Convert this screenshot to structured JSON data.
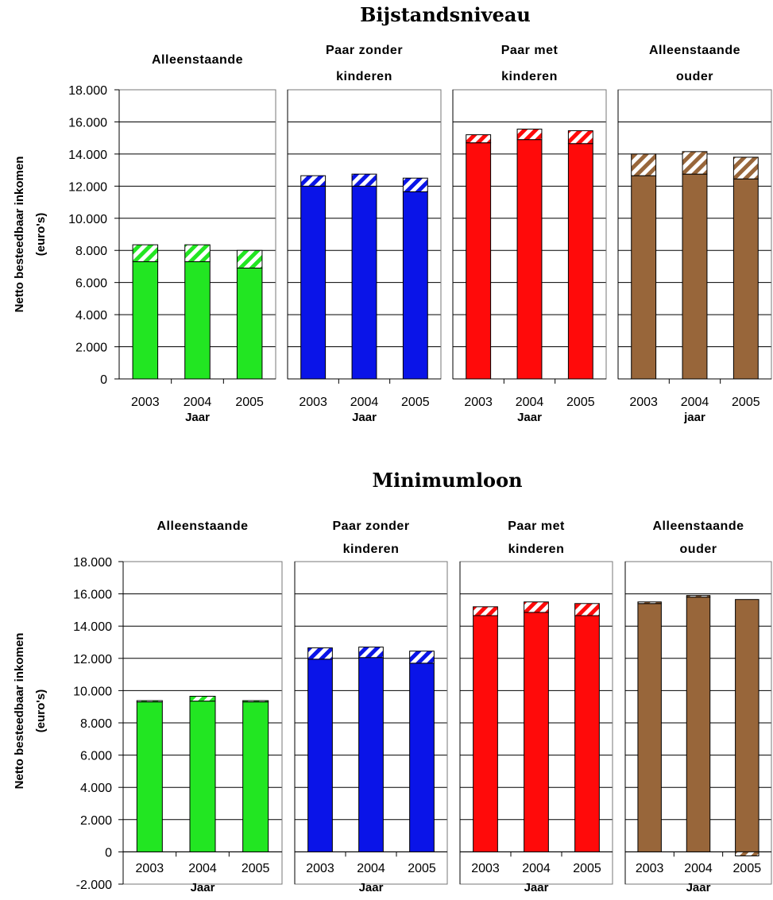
{
  "chart_data": [
    {
      "type": "bar",
      "stacked": true,
      "title": "Bijstandsniveau",
      "ylabel": "Netto besteedbaar inkomen (euro's)",
      "ylabel_lines": [
        "Netto besteedbaar inkomen",
        "(euro's)"
      ],
      "ylim": [
        0,
        18000
      ],
      "yticks": [
        0,
        2000,
        4000,
        6000,
        8000,
        10000,
        12000,
        14000,
        16000,
        18000
      ],
      "ytick_labels": [
        "0",
        "2.000",
        "4.000",
        "6.000",
        "8.000",
        "10.000",
        "12.000",
        "14.000",
        "16.000",
        "18.000"
      ],
      "categories": [
        "2003",
        "2004",
        "2005"
      ],
      "panels": [
        {
          "title_lines": [
            "Alleenstaande"
          ],
          "xlabel": "Jaar",
          "color": "#22e622",
          "base": [
            7300,
            7300,
            6900
          ],
          "extra": [
            1050,
            1050,
            1100
          ]
        },
        {
          "title_lines": [
            "Paar zonder",
            "kinderen"
          ],
          "xlabel": "Jaar",
          "color": "#0a14e8",
          "base": [
            12000,
            12000,
            11650
          ],
          "extra": [
            650,
            750,
            850
          ]
        },
        {
          "title_lines": [
            "Paar met",
            "kinderen"
          ],
          "xlabel": "Jaar",
          "color": "#ff0a0a",
          "base": [
            14700,
            14900,
            14650
          ],
          "extra": [
            500,
            650,
            800
          ]
        },
        {
          "title_lines": [
            "Alleenstaande",
            "ouder"
          ],
          "xlabel": "jaar",
          "color": "#98663a",
          "base": [
            12650,
            12750,
            12450
          ],
          "extra": [
            1350,
            1400,
            1350
          ]
        }
      ]
    },
    {
      "type": "bar",
      "stacked": true,
      "title": "Minimumloon",
      "ylabel": "Netto besteedbaar inkomen (euro's)",
      "ylabel_lines": [
        "Netto besteedbaar inkomen",
        "(euro's)"
      ],
      "ylim": [
        -2000,
        18000
      ],
      "yticks": [
        -2000,
        0,
        2000,
        4000,
        6000,
        8000,
        10000,
        12000,
        14000,
        16000,
        18000
      ],
      "ytick_labels": [
        "-2.000",
        "0",
        "2.000",
        "4.000",
        "6.000",
        "8.000",
        "10.000",
        "12.000",
        "14.000",
        "16.000",
        "18.000"
      ],
      "categories": [
        "2003",
        "2004",
        "2005"
      ],
      "panels": [
        {
          "title_lines": [
            "Alleenstaande"
          ],
          "xlabel": "Jaar",
          "color": "#22e622",
          "base": [
            9300,
            9350,
            9300
          ],
          "extra": [
            80,
            300,
            80
          ]
        },
        {
          "title_lines": [
            "Paar zonder",
            "kinderen"
          ],
          "xlabel": "Jaar",
          "color": "#0a14e8",
          "base": [
            11950,
            12050,
            11700
          ],
          "extra": [
            700,
            650,
            750
          ]
        },
        {
          "title_lines": [
            "Paar met",
            "kinderen"
          ],
          "xlabel": "Jaar",
          "color": "#ff0a0a",
          "base": [
            14650,
            14850,
            14650
          ],
          "extra": [
            550,
            650,
            750
          ]
        },
        {
          "title_lines": [
            "Alleenstaande",
            "ouder"
          ],
          "xlabel": "Jaar",
          "color": "#98663a",
          "base": [
            15400,
            15800,
            15650
          ],
          "extra": [
            100,
            100,
            -250
          ]
        }
      ]
    }
  ]
}
